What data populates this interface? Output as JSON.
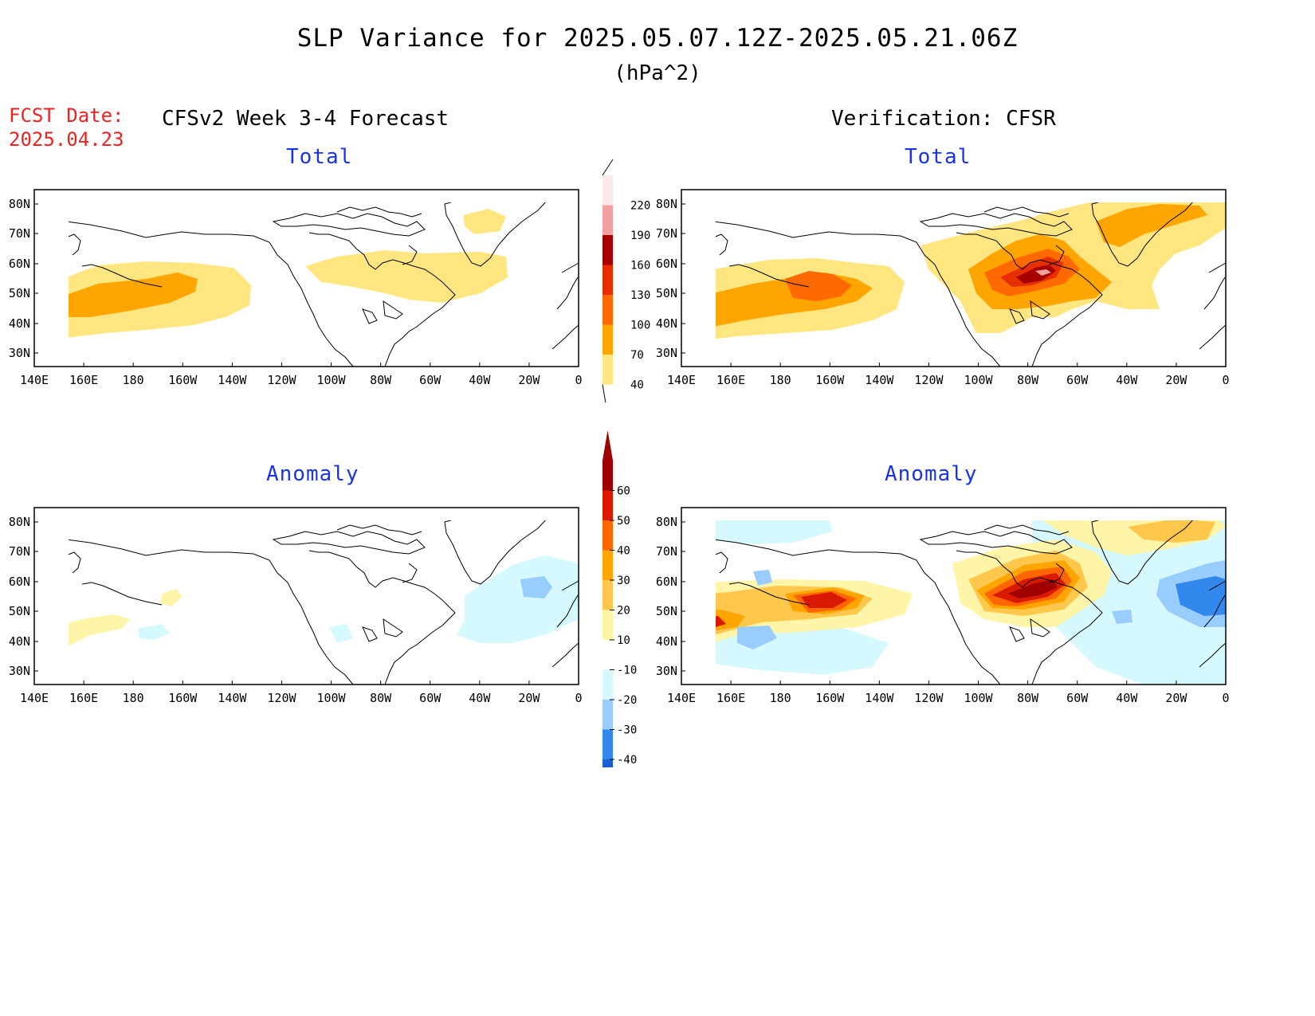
{
  "header": {
    "title": "SLP Variance for 2025.05.07.12Z-2025.05.21.06Z",
    "units": "(hPa^2)",
    "fcst_label": "FCST Date:",
    "fcst_date": "2025.04.23"
  },
  "columns": {
    "left_title": "CFSv2 Week 3-4 Forecast",
    "right_title": "Verification: CFSR"
  },
  "panels": [
    {
      "id": "fcst-total",
      "subtitle": "Total"
    },
    {
      "id": "verif-total",
      "subtitle": "Total"
    },
    {
      "id": "fcst-anomaly",
      "subtitle": "Anomaly"
    },
    {
      "id": "verif-anomaly",
      "subtitle": "Anomaly"
    }
  ],
  "axes": {
    "lat_labels": [
      "80N",
      "70N",
      "60N",
      "50N",
      "40N",
      "30N"
    ],
    "lon_labels": [
      "140E",
      "160E",
      "180",
      "160W",
      "140W",
      "120W",
      "100W",
      "80W",
      "60W",
      "40W",
      "20W",
      "0"
    ]
  },
  "colorbars": {
    "total": {
      "levels": [
        "40",
        "70",
        "100",
        "130",
        "160",
        "190",
        "220"
      ],
      "colors": [
        "#ffe680",
        "#ffa500",
        "#ff6a00",
        "#e62e00",
        "#a80000",
        "#f4a0a0",
        "#fce8e8"
      ]
    },
    "anomaly": {
      "levels": [
        "60",
        "50",
        "40",
        "30",
        "20",
        "10",
        "-10",
        "-20",
        "-30",
        "-40"
      ],
      "colors": [
        "#a00000",
        "#d91a00",
        "#ff6600",
        "#ffa500",
        "#ffc84d",
        "#fff5a8",
        "#ffffff",
        "#d6f8ff",
        "#99ccff",
        "#3388ee",
        "#1a5fd6"
      ]
    }
  },
  "map_colors": {
    "total": {
      "c40": "#ffe680",
      "c70": "#ffa500",
      "c100": "#ff6a00",
      "c130": "#e62e00",
      "c160": "#a80000",
      "c190": "#f4a0a0"
    },
    "anomaly": {
      "p10": "#fff5a8",
      "p20": "#ffc84d",
      "p30": "#ffa500",
      "p40": "#ff6600",
      "p50": "#d91a00",
      "p60": "#a00000",
      "m10": "#d6f8ff",
      "m20": "#99ccff",
      "m30": "#3388ee"
    }
  }
}
